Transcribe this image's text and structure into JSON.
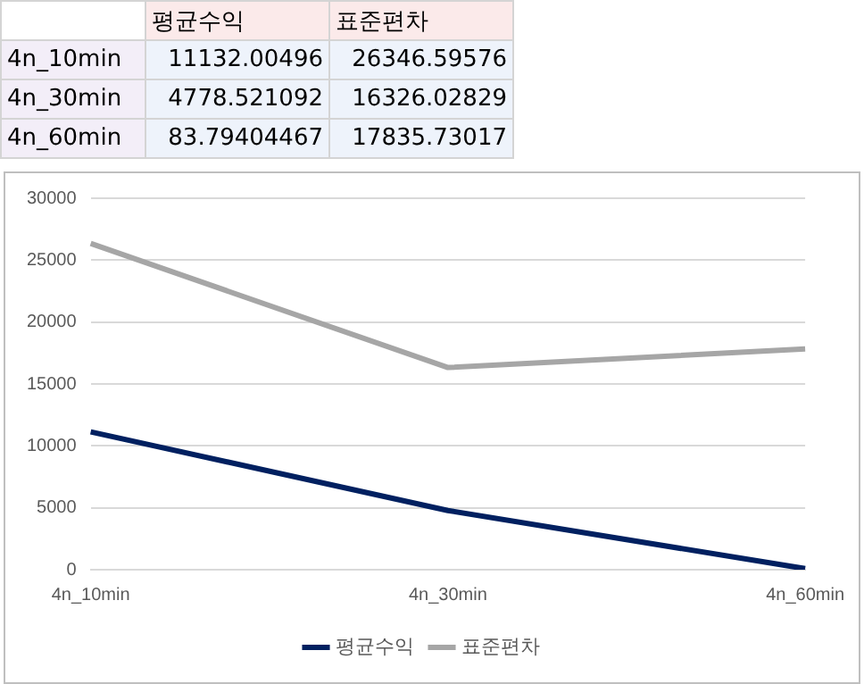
{
  "chart_data": [
    {
      "type": "other",
      "annotations": [
        "평균수익",
        "표준편차",
        "4n_10min",
        "11132.00496",
        "26346.59576",
        "4n_30min",
        "4778.521092",
        "16326.02829",
        "4n_60min",
        "83.79404467",
        "17835.73017"
      ]
    },
    {
      "type": "line",
      "categories": [
        "4n_10min",
        "4n_30min",
        "4n_60min"
      ],
      "series": [
        {
          "name": "평균수익",
          "color": "#002060",
          "values": [
            11132,
            4779,
            84
          ]
        },
        {
          "name": "표준편차",
          "color": "#a6a6a6",
          "values": [
            26347,
            16326,
            17836
          ]
        }
      ],
      "ylim": [
        0,
        30000
      ],
      "yticks": [
        0,
        5000,
        10000,
        15000,
        20000,
        25000,
        30000
      ],
      "grid": "y",
      "legend": "bottom",
      "marker": "none",
      "line_style": "solid"
    }
  ]
}
